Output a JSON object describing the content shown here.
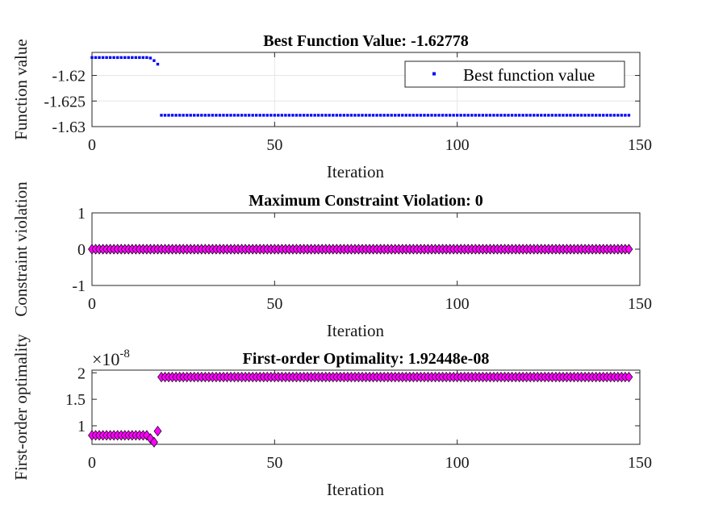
{
  "chart_data": [
    {
      "type": "scatter",
      "title": "Best Function Value: -1.62778",
      "xlabel": "Iteration",
      "ylabel": "Function value",
      "xlim": [
        0,
        150
      ],
      "ylim": [
        -1.63,
        -1.6155
      ],
      "xticks": [
        "0",
        "50",
        "100",
        "150"
      ],
      "yticks": [
        {
          "value": -1.62,
          "label": "-1.62"
        },
        {
          "value": -1.625,
          "label": "-1.625"
        },
        {
          "value": -1.63,
          "label": "-1.63"
        }
      ],
      "grid": true,
      "legend": {
        "position": "top-right",
        "entries": [
          "Best function value"
        ]
      },
      "marker": "point",
      "color": "#0000ff",
      "series": [
        {
          "name": "Best function value",
          "iter_start": 0,
          "values": [
            -1.6165,
            -1.6165,
            -1.6165,
            -1.6165,
            -1.6165,
            -1.6165,
            -1.6165,
            -1.6165,
            -1.6165,
            -1.6165,
            -1.6165,
            -1.6165,
            -1.6165,
            -1.6165,
            -1.6165,
            -1.6165,
            -1.6166,
            -1.6171,
            -1.6178,
            -1.62778,
            -1.62778,
            -1.62778,
            -1.62778,
            -1.62778,
            -1.62778,
            -1.62778,
            -1.62778,
            -1.62778,
            -1.62778,
            -1.62778,
            -1.62778,
            -1.62778,
            -1.62778,
            -1.62778,
            -1.62778,
            -1.62778,
            -1.62778,
            -1.62778,
            -1.62778,
            -1.62778,
            -1.62778,
            -1.62778,
            -1.62778,
            -1.62778,
            -1.62778,
            -1.62778,
            -1.62778,
            -1.62778,
            -1.62778,
            -1.62778,
            -1.62778,
            -1.62778,
            -1.62778,
            -1.62778,
            -1.62778,
            -1.62778,
            -1.62778,
            -1.62778,
            -1.62778,
            -1.62778,
            -1.62778,
            -1.62778,
            -1.62778,
            -1.62778,
            -1.62778,
            -1.62778,
            -1.62778,
            -1.62778,
            -1.62778,
            -1.62778,
            -1.62778,
            -1.62778,
            -1.62778,
            -1.62778,
            -1.62778,
            -1.62778,
            -1.62778,
            -1.62778,
            -1.62778,
            -1.62778,
            -1.62778,
            -1.62778,
            -1.62778,
            -1.62778,
            -1.62778,
            -1.62778,
            -1.62778,
            -1.62778,
            -1.62778,
            -1.62778,
            -1.62778,
            -1.62778,
            -1.62778,
            -1.62778,
            -1.62778,
            -1.62778,
            -1.62778,
            -1.62778,
            -1.62778,
            -1.62778,
            -1.62778,
            -1.62778,
            -1.62778,
            -1.62778,
            -1.62778,
            -1.62778,
            -1.62778,
            -1.62778,
            -1.62778,
            -1.62778,
            -1.62778,
            -1.62778,
            -1.62778,
            -1.62778,
            -1.62778,
            -1.62778,
            -1.62778,
            -1.62778,
            -1.62778,
            -1.62778,
            -1.62778,
            -1.62778,
            -1.62778,
            -1.62778,
            -1.62778,
            -1.62778,
            -1.62778,
            -1.62778,
            -1.62778,
            -1.62778,
            -1.62778,
            -1.62778,
            -1.62778,
            -1.62778,
            -1.62778,
            -1.62778,
            -1.62778,
            -1.62778,
            -1.62778,
            -1.62778,
            -1.62778,
            -1.62778,
            -1.62778,
            -1.62778,
            -1.62778,
            -1.62778,
            -1.62778,
            -1.62778
          ]
        }
      ]
    },
    {
      "type": "scatter",
      "title": "Maximum Constraint Violation: 0",
      "xlabel": "Iteration",
      "ylabel": "Constraint violation",
      "xlim": [
        0,
        150
      ],
      "ylim": [
        -1,
        1
      ],
      "xticks": [
        "0",
        "50",
        "100",
        "150"
      ],
      "yticks": [
        {
          "value": 1,
          "label": "1"
        },
        {
          "value": 0,
          "label": "0"
        },
        {
          "value": -1,
          "label": "-1"
        }
      ],
      "grid": false,
      "marker": "diamond",
      "color": "#ff00ff",
      "series": [
        {
          "iter_start": 0,
          "values": [
            0,
            0,
            0,
            0,
            0,
            0,
            0,
            0,
            0,
            0,
            0,
            0,
            0,
            0,
            0,
            0,
            0,
            0,
            0,
            0,
            0,
            0,
            0,
            0,
            0,
            0,
            0,
            0,
            0,
            0,
            0,
            0,
            0,
            0,
            0,
            0,
            0,
            0,
            0,
            0,
            0,
            0,
            0,
            0,
            0,
            0,
            0,
            0,
            0,
            0,
            0,
            0,
            0,
            0,
            0,
            0,
            0,
            0,
            0,
            0,
            0,
            0,
            0,
            0,
            0,
            0,
            0,
            0,
            0,
            0,
            0,
            0,
            0,
            0,
            0,
            0,
            0,
            0,
            0,
            0,
            0,
            0,
            0,
            0,
            0,
            0,
            0,
            0,
            0,
            0,
            0,
            0,
            0,
            0,
            0,
            0,
            0,
            0,
            0,
            0,
            0,
            0,
            0,
            0,
            0,
            0,
            0,
            0,
            0,
            0,
            0,
            0,
            0,
            0,
            0,
            0,
            0,
            0,
            0,
            0,
            0,
            0,
            0,
            0,
            0,
            0,
            0,
            0,
            0,
            0,
            0,
            0,
            0,
            0,
            0,
            0,
            0,
            0,
            0,
            0,
            0,
            0,
            0,
            0,
            0,
            0,
            0,
            0
          ]
        }
      ]
    },
    {
      "type": "scatter",
      "title": "First-order Optimality: 1.92448e-08",
      "xlabel": "Iteration",
      "ylabel": "First-order optimality",
      "xlim": [
        0,
        150
      ],
      "ylim": [
        0.65,
        2.05
      ],
      "exponent_label": "×10",
      "exponent_power": "-8",
      "xticks": [
        "0",
        "50",
        "100",
        "150"
      ],
      "yticks": [
        {
          "value": 2,
          "label": "2"
        },
        {
          "value": 1.5,
          "label": "1.5"
        },
        {
          "value": 1,
          "label": "1"
        }
      ],
      "grid": false,
      "marker": "diamond",
      "color": "#ff00ff",
      "series": [
        {
          "iter_start": 0,
          "values": [
            0.82,
            0.82,
            0.82,
            0.82,
            0.82,
            0.82,
            0.82,
            0.82,
            0.82,
            0.82,
            0.82,
            0.82,
            0.82,
            0.82,
            0.82,
            0.82,
            0.76,
            0.69,
            0.9,
            1.92,
            1.92,
            1.92,
            1.92,
            1.92,
            1.92,
            1.92,
            1.92,
            1.92,
            1.92,
            1.92,
            1.92,
            1.92,
            1.92,
            1.92,
            1.92,
            1.92,
            1.92,
            1.92,
            1.92,
            1.92,
            1.92,
            1.92,
            1.92,
            1.92,
            1.92,
            1.92,
            1.92,
            1.92,
            1.92,
            1.92,
            1.92,
            1.92,
            1.92,
            1.92,
            1.92,
            1.92,
            1.92,
            1.92,
            1.92,
            1.92,
            1.92,
            1.92,
            1.92,
            1.92,
            1.92,
            1.92,
            1.92,
            1.92,
            1.92,
            1.92,
            1.92,
            1.92,
            1.92,
            1.92,
            1.92,
            1.92,
            1.92,
            1.92,
            1.92,
            1.92,
            1.92,
            1.92,
            1.92,
            1.92,
            1.92,
            1.92,
            1.92,
            1.92,
            1.92,
            1.92,
            1.92,
            1.92,
            1.92,
            1.92,
            1.92,
            1.92,
            1.92,
            1.92,
            1.92,
            1.92,
            1.92,
            1.92,
            1.92,
            1.92,
            1.92,
            1.92,
            1.92,
            1.92,
            1.92,
            1.92,
            1.92,
            1.92,
            1.92,
            1.92,
            1.92,
            1.92,
            1.92,
            1.92,
            1.92,
            1.92,
            1.92,
            1.92,
            1.92,
            1.92,
            1.92,
            1.92,
            1.92,
            1.92,
            1.92,
            1.92,
            1.92,
            1.92,
            1.92,
            1.92,
            1.92,
            1.92,
            1.92,
            1.92,
            1.92,
            1.92,
            1.92,
            1.92,
            1.92,
            1.92,
            1.92,
            1.92,
            1.92,
            1.92
          ]
        }
      ]
    }
  ]
}
